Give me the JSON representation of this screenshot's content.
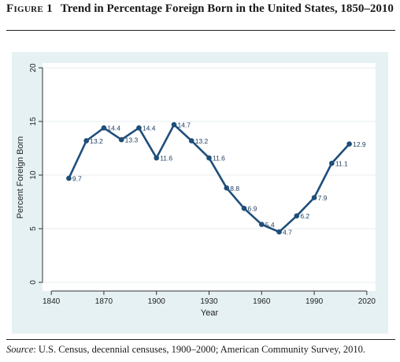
{
  "figure": {
    "label_main": "F",
    "label_rest": "igure 1",
    "title": "Trend in Percentage Foreign Born in the United States, 1850–2010"
  },
  "source": {
    "prefix": "Source",
    "text": ": U.S. Census, decennial censuses, 1900–2000; American Community Survey, 2010."
  },
  "colors": {
    "line": "#1f4e7a",
    "panel_bg": "#e5f1f3",
    "grid": "#e7eef0"
  },
  "chart_data": {
    "type": "line",
    "title": "",
    "xlabel": "Year",
    "ylabel": "Percent Foreign Born",
    "xlim": [
      1835,
      2025
    ],
    "ylim": [
      0,
      20
    ],
    "xticks": [
      1840,
      1870,
      1900,
      1930,
      1960,
      1990,
      2020
    ],
    "yticks": [
      0,
      5,
      10,
      15,
      20
    ],
    "grid": true,
    "x": [
      1850,
      1860,
      1870,
      1880,
      1890,
      1900,
      1910,
      1920,
      1930,
      1940,
      1950,
      1960,
      1970,
      1980,
      1990,
      2000,
      2010
    ],
    "values": [
      9.7,
      13.2,
      14.4,
      13.3,
      14.4,
      11.6,
      14.7,
      13.2,
      11.6,
      8.8,
      6.9,
      5.4,
      4.7,
      6.2,
      7.9,
      11.1,
      12.9
    ],
    "labels": [
      "9.7",
      "13.2",
      "14.4",
      "13.3",
      "14.4",
      "11.6",
      "14.7",
      "13.2",
      "11.6",
      "8.8",
      "6.9",
      "5.4",
      "4.7",
      "6.2",
      "7.9",
      "11.1",
      "12.9"
    ]
  }
}
